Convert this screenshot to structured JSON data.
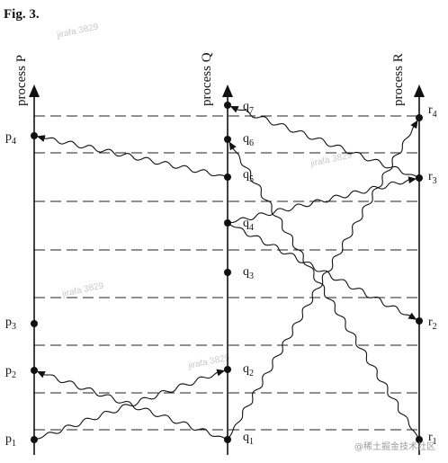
{
  "figure": {
    "title": "Fig. 3.",
    "watermark": "jirafa 3829",
    "corner_mark": "@稀土掘金技术社区"
  },
  "processes": [
    {
      "id": "P",
      "label": "process P",
      "events": [
        {
          "name": "p",
          "index": "1"
        },
        {
          "name": "p",
          "index": "2"
        },
        {
          "name": "p",
          "index": "3"
        },
        {
          "name": "p",
          "index": "4"
        }
      ]
    },
    {
      "id": "Q",
      "label": "process Q",
      "events": [
        {
          "name": "q",
          "index": "1"
        },
        {
          "name": "q",
          "index": "2"
        },
        {
          "name": "q",
          "index": "3"
        },
        {
          "name": "q",
          "index": "4"
        },
        {
          "name": "q",
          "index": "5"
        },
        {
          "name": "q",
          "index": "6"
        },
        {
          "name": "q",
          "index": "7"
        }
      ]
    },
    {
      "id": "R",
      "label": "process R",
      "events": [
        {
          "name": "r",
          "index": "1"
        },
        {
          "name": "r",
          "index": "2"
        },
        {
          "name": "r",
          "index": "3"
        },
        {
          "name": "r",
          "index": "4"
        }
      ]
    }
  ],
  "messages": [
    {
      "from": "p1",
      "to": "q2"
    },
    {
      "from": "q1",
      "to": "p2"
    },
    {
      "from": "q1",
      "to": "r4"
    },
    {
      "from": "q4",
      "to": "r3"
    },
    {
      "from": "q5",
      "to": "p4"
    },
    {
      "from": "r1",
      "to": "q6"
    },
    {
      "from": "r3",
      "to": "q7"
    },
    {
      "from": "q4",
      "to": "r2"
    }
  ]
}
